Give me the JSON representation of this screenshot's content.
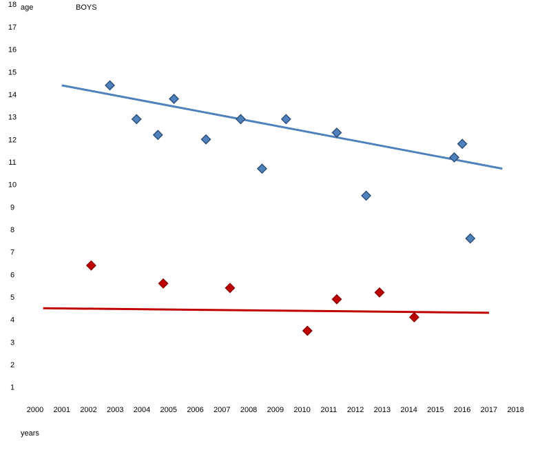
{
  "chart_data": {
    "type": "scatter",
    "title": "BOYS",
    "xlabel": "years",
    "ylabel": "age",
    "xlim": [
      2000,
      2018
    ],
    "ylim": [
      0,
      18
    ],
    "x_ticks": [
      "2000",
      "2001",
      "2002",
      "2003",
      "2004",
      "2005",
      "2006",
      "2007",
      "2008",
      "2009",
      "2010",
      "2011",
      "2012",
      "2013",
      "2014",
      "2015",
      "2016",
      "2017",
      "2018"
    ],
    "y_ticks": [
      "1",
      "2",
      "3",
      "4",
      "5",
      "6",
      "7",
      "8",
      "9",
      "10",
      "11",
      "12",
      "13",
      "14",
      "15",
      "16",
      "17",
      "18"
    ],
    "grid": false,
    "series": [
      {
        "color": "#4f81bd",
        "points": [
          [
            2002.8,
            14.4
          ],
          [
            2003.8,
            12.9
          ],
          [
            2004.6,
            12.2
          ],
          [
            2005.2,
            13.8
          ],
          [
            2006.4,
            12.0
          ],
          [
            2007.7,
            12.9
          ],
          [
            2008.5,
            10.7
          ],
          [
            2009.4,
            12.9
          ],
          [
            2011.3,
            12.3
          ],
          [
            2012.4,
            9.5
          ],
          [
            2015.7,
            11.2
          ],
          [
            2016.0,
            11.8
          ],
          [
            2016.3,
            7.6
          ]
        ],
        "trend": [
          [
            2001.0,
            14.4
          ],
          [
            2017.5,
            10.7
          ]
        ]
      },
      {
        "color": "#c00000",
        "points": [
          [
            2002.1,
            6.4
          ],
          [
            2004.8,
            5.6
          ],
          [
            2007.3,
            5.4
          ],
          [
            2010.2,
            3.5
          ],
          [
            2011.3,
            4.9
          ],
          [
            2012.9,
            5.2
          ],
          [
            2014.2,
            4.1
          ]
        ],
        "trend": [
          [
            2000.3,
            4.5
          ],
          [
            2017.0,
            4.3
          ]
        ]
      }
    ]
  }
}
